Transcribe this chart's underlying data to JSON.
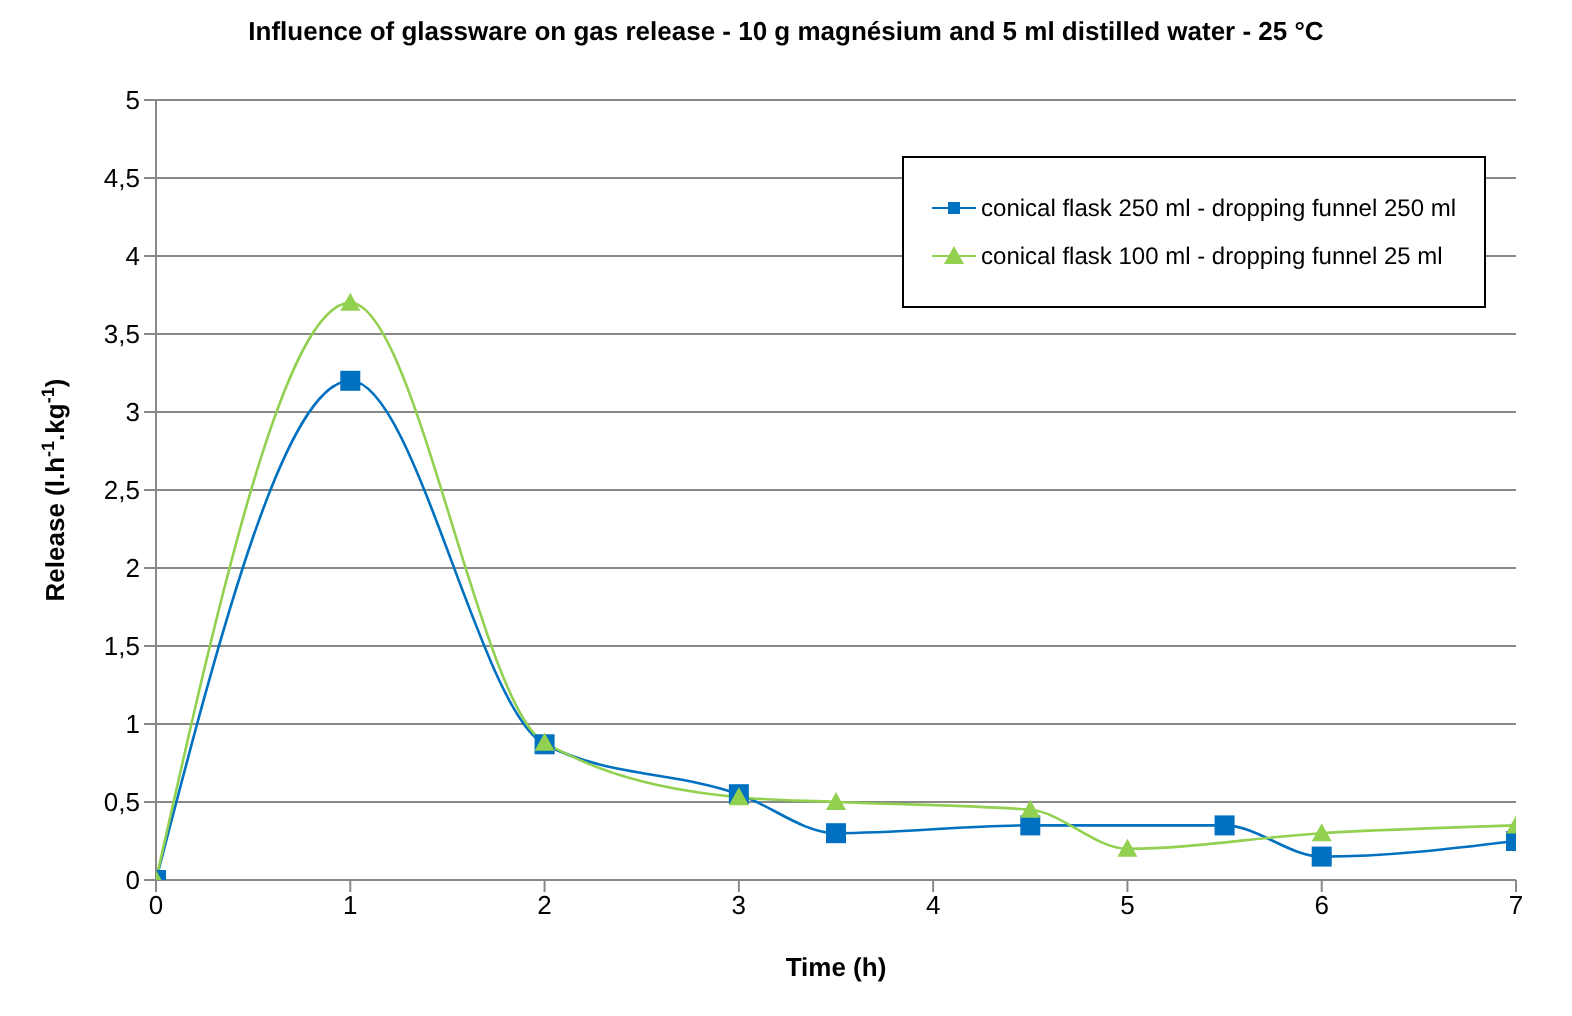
{
  "chart_data": {
    "type": "line",
    "title": "Influence of glassware on gas release - 10 g magnésium and 5 ml distilled water - 25 °C",
    "xlabel": "Time (h)",
    "ylabel": "Release (l.h$^{-1}$.kg$^{-1}$)",
    "series": [
      {
        "name": "conical flask 250 ml - dropping funnel 250 ml",
        "color": "#0070c0",
        "marker": "square",
        "x": [
          0,
          1,
          2,
          3,
          3.5,
          4.5,
          5.5,
          6,
          7
        ],
        "values": [
          0,
          3.2,
          0.87,
          0.55,
          0.3,
          0.35,
          0.35,
          0.15,
          0.25
        ]
      },
      {
        "name": "conical flask 100 ml - dropping funnel 25 ml",
        "color": "#92d050",
        "marker": "triangle",
        "x": [
          0,
          1,
          2,
          3,
          3.5,
          4.5,
          5,
          6,
          7
        ],
        "values": [
          0,
          3.7,
          0.88,
          0.53,
          0.5,
          0.45,
          0.2,
          0.3,
          0.35
        ]
      }
    ],
    "xlim": [
      0,
      7
    ],
    "xticks": [
      0,
      1,
      2,
      3,
      4,
      5,
      6,
      7
    ],
    "ylim": [
      0,
      5
    ],
    "yticks": [
      0,
      {
        "value": 0.5,
        "label": "0,5"
      },
      1,
      {
        "value": 1.5,
        "label": "1,5"
      },
      2,
      {
        "value": 2.5,
        "label": "2,5"
      },
      3,
      {
        "value": 3.5,
        "label": "3,5"
      },
      4,
      {
        "value": 4.5,
        "label": "4,5"
      },
      5
    ],
    "grid": "y",
    "legend": "top right",
    "line_style": "solid"
  }
}
